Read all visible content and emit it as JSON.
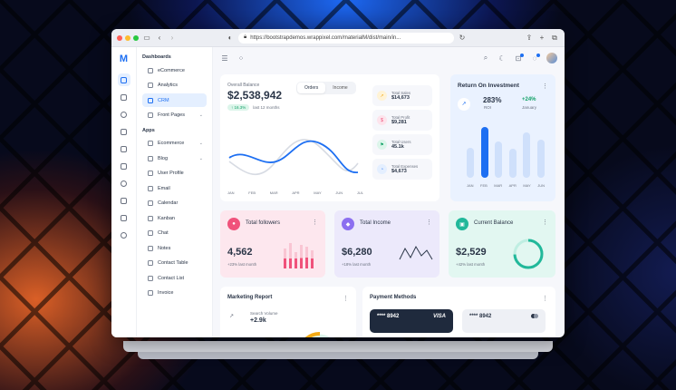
{
  "browser": {
    "url": "https://bootstrapdemos.wrappixel.com/materialM/dist/main/in..."
  },
  "sidebar": {
    "dashboards_heading": "Dashboards",
    "dashboards": [
      {
        "label": "eCommerce"
      },
      {
        "label": "Analytics"
      },
      {
        "label": "CRM"
      },
      {
        "label": "Front Pages"
      }
    ],
    "apps_heading": "Apps",
    "apps": [
      {
        "label": "Ecommerce"
      },
      {
        "label": "Blog"
      },
      {
        "label": "User Profile"
      },
      {
        "label": "Email"
      },
      {
        "label": "Calendar"
      },
      {
        "label": "Kanban"
      },
      {
        "label": "Chat"
      },
      {
        "label": "Notes"
      },
      {
        "label": "Contact Table"
      },
      {
        "label": "Contact List"
      },
      {
        "label": "Invoice"
      }
    ]
  },
  "balance": {
    "title": "Overall Balance",
    "amount": "$2,538,942",
    "change": "16.3%",
    "change_note": "last 12 months",
    "tab_orders": "Orders",
    "tab_income": "Income",
    "months": [
      "JAN",
      "FEB",
      "MAR",
      "APR",
      "MAY",
      "JUN",
      "JUL"
    ],
    "stats": [
      {
        "label": "Total Sales",
        "value": "$14,673"
      },
      {
        "label": "Total Profit",
        "value": "$9,281"
      },
      {
        "label": "Total Users",
        "value": "45.1k"
      },
      {
        "label": "Total Expenses",
        "value": "$4,673"
      }
    ]
  },
  "roi": {
    "title": "Return On Investment",
    "value": "283%",
    "value_label": "ROI",
    "change": "+24%",
    "change_label": "January",
    "months": [
      "JAN",
      "FEB",
      "MAR",
      "APR",
      "MAY",
      "JUN"
    ]
  },
  "followers": {
    "title": "Total followers",
    "value": "4,562",
    "note": "+23% last month"
  },
  "income": {
    "title": "Total Income",
    "value": "$6,280",
    "note": "+18% last month"
  },
  "current": {
    "title": "Current Balance",
    "value": "$2,529",
    "note": "+42% last month"
  },
  "marketing": {
    "title": "Marketing Report",
    "metric_label": "Search Volume",
    "metric_value": "+2.9k"
  },
  "payment": {
    "title": "Payment Methods",
    "card1_number": "**** 8942",
    "card1_brand": "VISA",
    "card2_number": "**** 8942"
  },
  "colors": {
    "primary": "#1d6ff2",
    "followers": "#f0527b",
    "income": "#8c6ff0",
    "current": "#21b89a"
  }
}
